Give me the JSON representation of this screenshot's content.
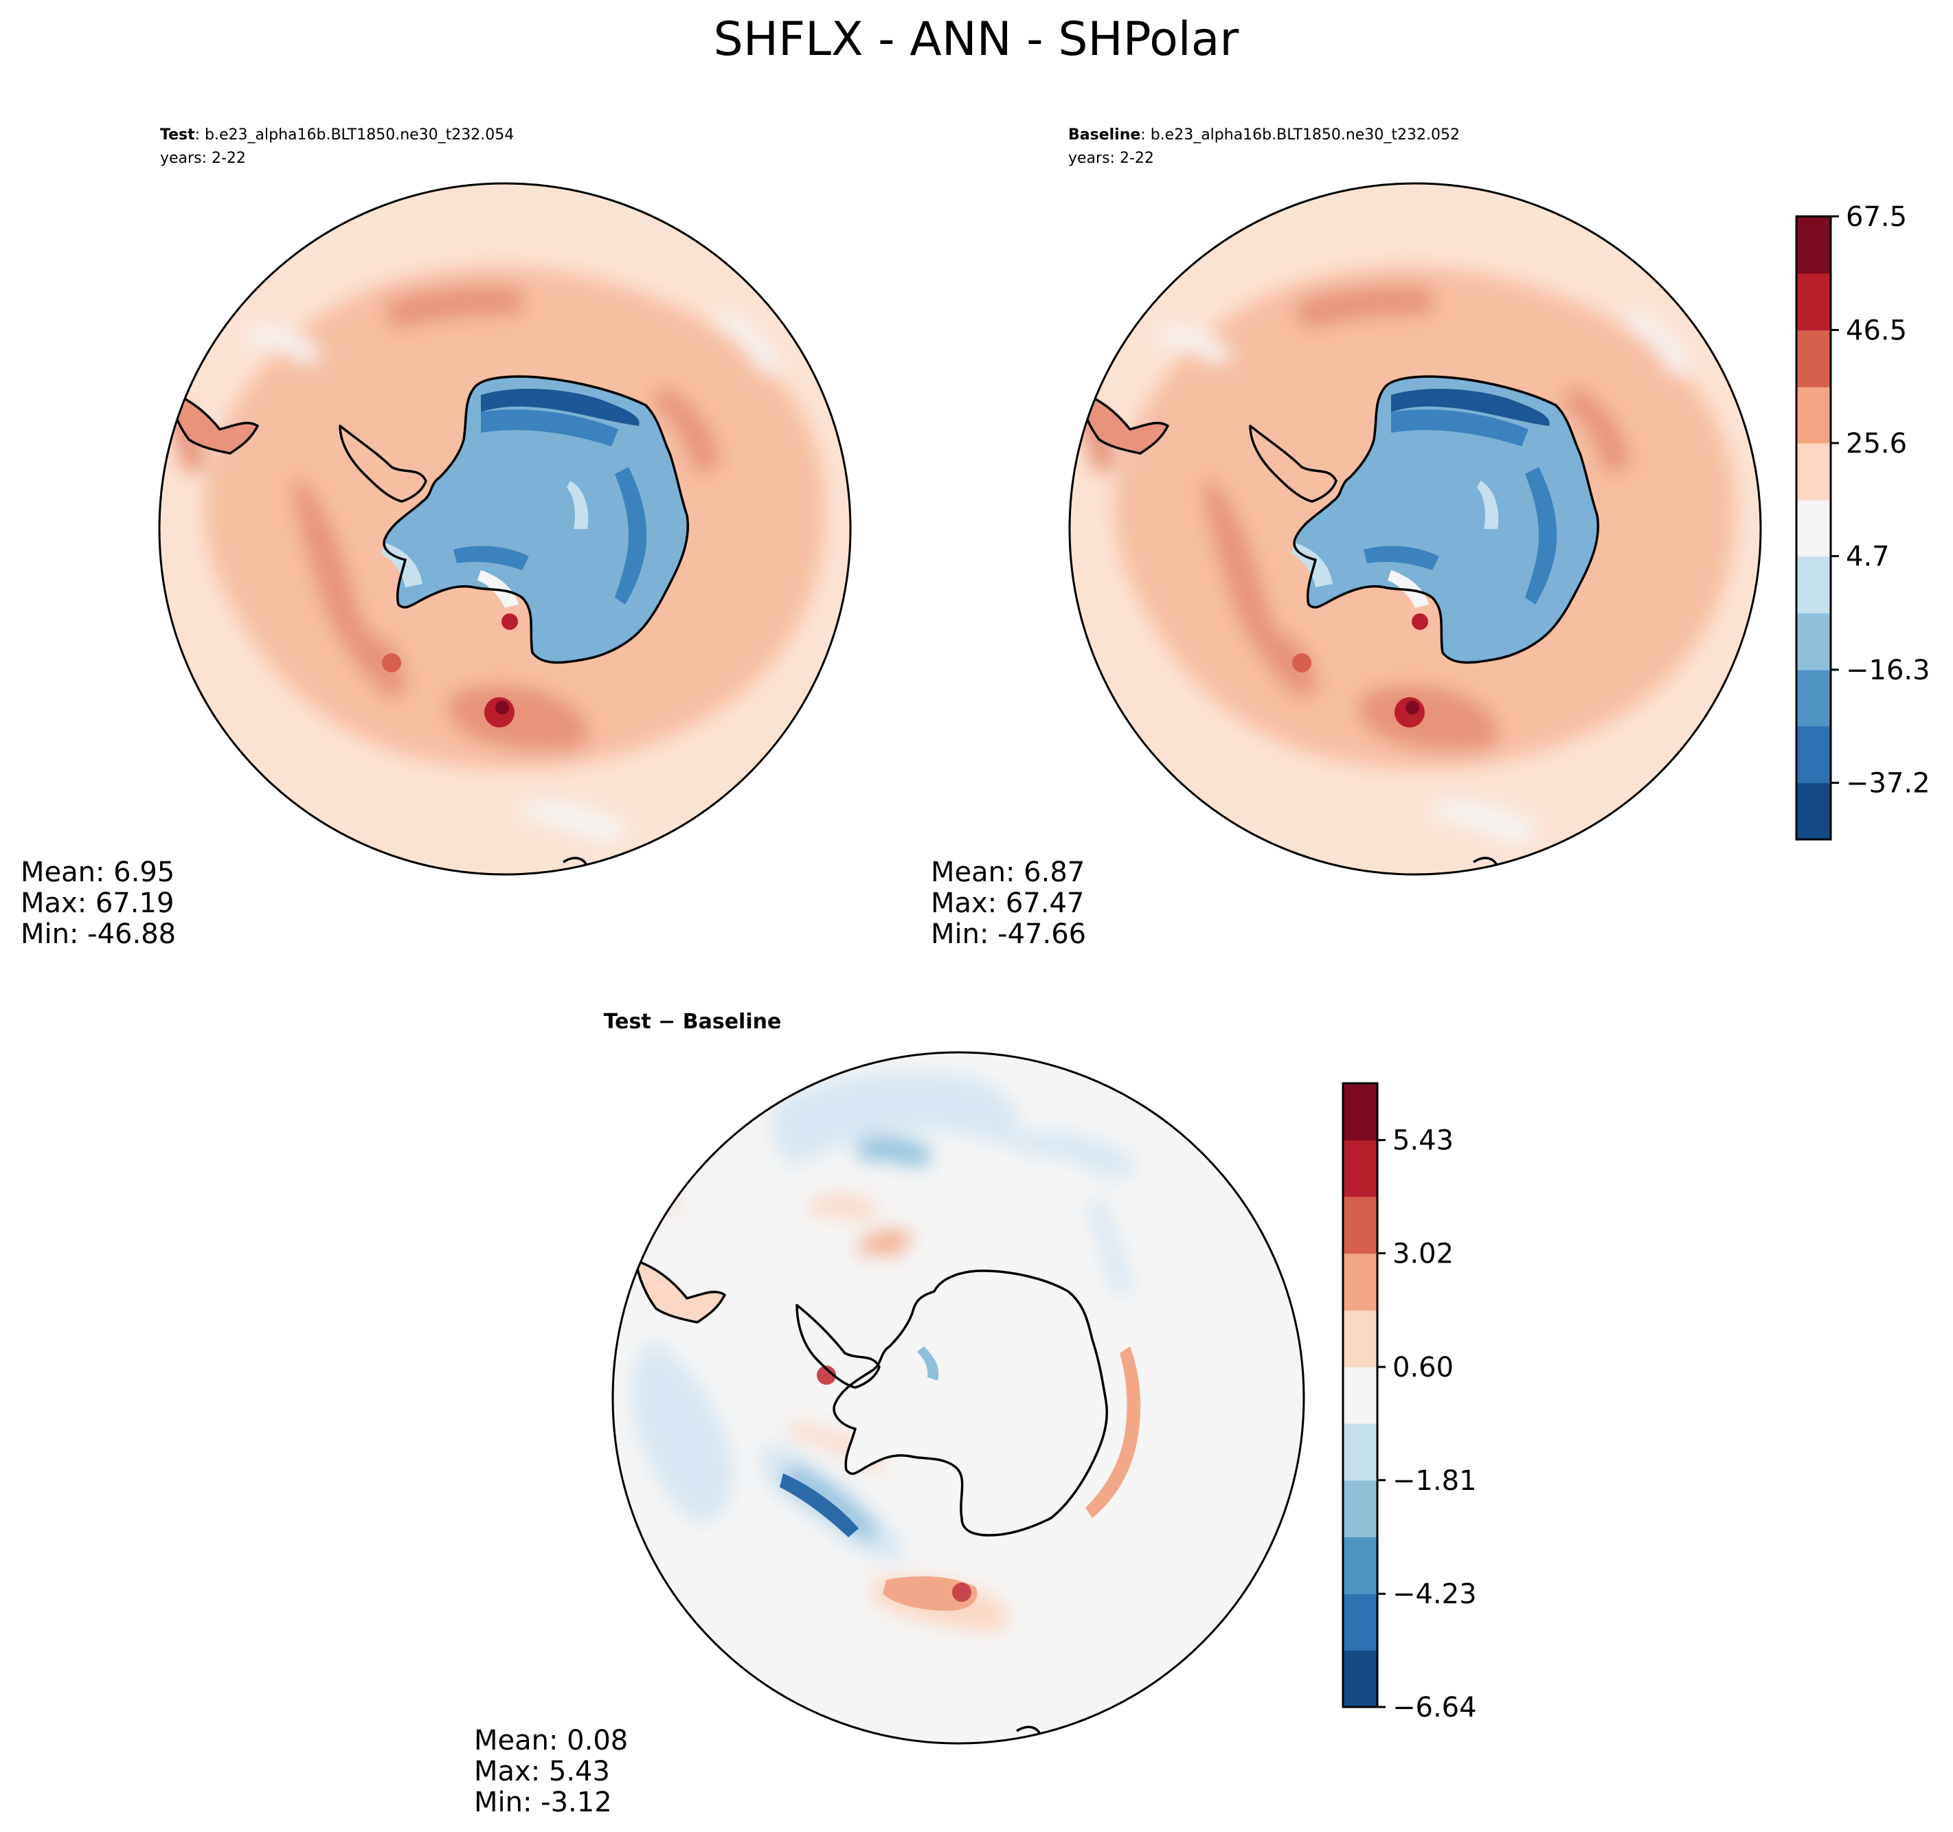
{
  "figure": {
    "title": "SHFLX - ANN - SHPolar"
  },
  "chart_data": [
    {
      "type": "heatmap",
      "panel": "test",
      "header_bold": "Test",
      "header_case": ": b.e23_alpha16b.BLT1850.ne30_t232.054",
      "header_years": "years: 2-22",
      "stats": {
        "mean": "Mean:  6.95",
        "max": "Max: 67.19",
        "min": "Min: -46.88"
      },
      "colorbar_levels": [
        -47.66,
        -37.2,
        -26.7,
        -16.3,
        -5.8,
        4.7,
        15.1,
        25.6,
        36.0,
        46.5,
        57.0,
        67.5
      ],
      "colorbar_ticks": [
        "67.5",
        "46.5",
        "25.6",
        "4.7",
        "−16.3",
        "−37.2"
      ]
    },
    {
      "type": "heatmap",
      "panel": "baseline",
      "header_bold": "Baseline",
      "header_case": ": b.e23_alpha16b.BLT1850.ne30_t232.052",
      "header_years": "years: 2-22",
      "stats": {
        "mean": "Mean:  6.87",
        "max": "Max: 67.47",
        "min": "Min: -47.66"
      }
    },
    {
      "type": "heatmap",
      "panel": "difference",
      "title": "Test − Baseline",
      "stats": {
        "mean": "Mean:  0.08",
        "max": "Max:  5.43",
        "min": "Min: -3.12"
      },
      "colorbar_levels": [
        -6.64,
        -5.43,
        -4.23,
        -3.02,
        -1.81,
        -0.6,
        0.6,
        1.81,
        3.02,
        4.23,
        5.43,
        6.64
      ],
      "colorbar_ticks": [
        "5.43",
        "3.02",
        "0.60",
        "−1.81",
        "−4.23",
        "−6.64"
      ]
    }
  ],
  "colors": {
    "rdbu_11": [
      "#134b87",
      "#2b73b3",
      "#4d95c4",
      "#8ec0da",
      "#c7e0ed",
      "#f5f5f5",
      "#fbd7c4",
      "#f4a683",
      "#d7604d",
      "#b91e2d",
      "#7d0a20"
    ],
    "test_antarctica": "#7bb2d6",
    "test_coastal_blue": "#3a83bf",
    "test_deep_blue": "#1c5797",
    "ocean_light": "#fbe3d4",
    "ocean_mid": "#f7bea2",
    "ocean_dark": "#e8937a",
    "diff_bg": "#f5f5f5",
    "diff_pos": "#fbd7c4",
    "diff_pos_mid": "#f2a888",
    "diff_pos_dark": "#c6464b",
    "diff_neg": "#d8e7f3",
    "diff_neg_mid": "#8fbfdb",
    "diff_neg_dark": "#2b6aa9"
  }
}
